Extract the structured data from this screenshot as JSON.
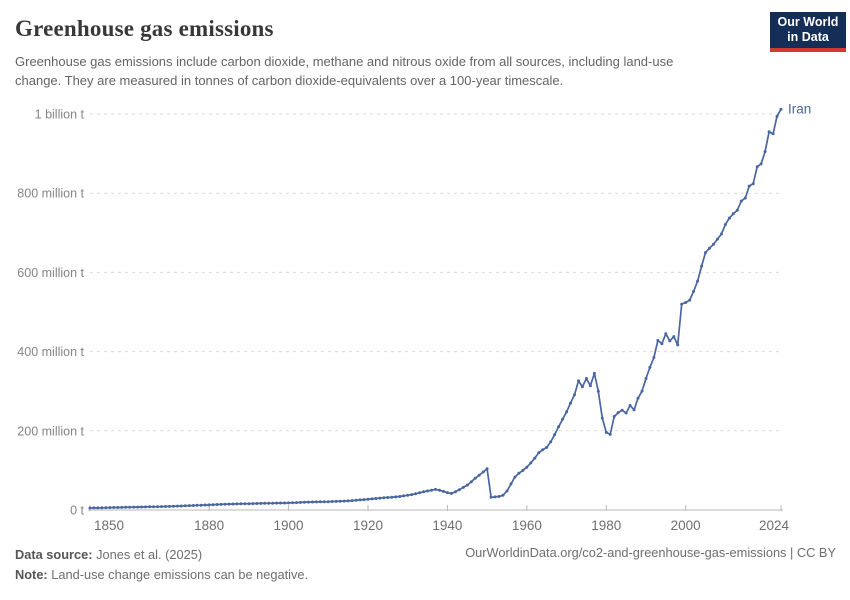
{
  "header": {
    "title": "Greenhouse gas emissions",
    "subtitle": "Greenhouse gas emissions include carbon dioxide, methane and nitrous oxide from all sources, including land-use change. They are measured in tonnes of carbon dioxide-equivalents over a 100-year timescale.",
    "logo": {
      "line1": "Our World",
      "line2": "in Data"
    }
  },
  "chart_data": {
    "type": "line",
    "title": "Greenhouse gas emissions",
    "unit": "tonnes of carbon dioxide-equivalents",
    "values_in": "million tonnes",
    "xlim": [
      1850,
      2024
    ],
    "ylim": [
      0,
      1000
    ],
    "grid": "dashed-horizontal",
    "legend": "end-of-line-label",
    "color": "#4a66a0",
    "x_ticks": [
      {
        "label": "1850",
        "year": 1850
      },
      {
        "label": "1880",
        "year": 1880
      },
      {
        "label": "1900",
        "year": 1900
      },
      {
        "label": "1920",
        "year": 1920
      },
      {
        "label": "1940",
        "year": 1940
      },
      {
        "label": "1960",
        "year": 1960
      },
      {
        "label": "1980",
        "year": 1980
      },
      {
        "label": "2000",
        "year": 2000
      },
      {
        "label": "2024",
        "year": 2024
      }
    ],
    "y_ticks": [
      {
        "label": "0 t",
        "value": 0
      },
      {
        "label": "200 million t",
        "value": 200
      },
      {
        "label": "400 million t",
        "value": 400
      },
      {
        "label": "600 million t",
        "value": 600
      },
      {
        "label": "800 million t",
        "value": 800
      },
      {
        "label": "1 billion t",
        "value": 1000
      }
    ],
    "series": [
      {
        "name": "Iran",
        "points": [
          [
            1850,
            5
          ],
          [
            1855,
            6
          ],
          [
            1860,
            7
          ],
          [
            1865,
            8
          ],
          [
            1870,
            9
          ],
          [
            1875,
            11
          ],
          [
            1880,
            13
          ],
          [
            1885,
            15
          ],
          [
            1890,
            16
          ],
          [
            1895,
            17
          ],
          [
            1900,
            18
          ],
          [
            1905,
            20
          ],
          [
            1910,
            21
          ],
          [
            1915,
            23
          ],
          [
            1920,
            27
          ],
          [
            1922,
            29
          ],
          [
            1924,
            31
          ],
          [
            1926,
            32
          ],
          [
            1928,
            34
          ],
          [
            1930,
            37
          ],
          [
            1932,
            41
          ],
          [
            1934,
            46
          ],
          [
            1936,
            50
          ],
          [
            1937,
            52
          ],
          [
            1938,
            50
          ],
          [
            1939,
            47
          ],
          [
            1940,
            44
          ],
          [
            1941,
            42
          ],
          [
            1942,
            46
          ],
          [
            1943,
            51
          ],
          [
            1944,
            57
          ],
          [
            1945,
            63
          ],
          [
            1946,
            71
          ],
          [
            1947,
            80
          ],
          [
            1948,
            88
          ],
          [
            1949,
            96
          ],
          [
            1950,
            104
          ],
          [
            1951,
            32
          ],
          [
            1952,
            33
          ],
          [
            1953,
            34
          ],
          [
            1954,
            37
          ],
          [
            1955,
            48
          ],
          [
            1956,
            66
          ],
          [
            1957,
            83
          ],
          [
            1958,
            93
          ],
          [
            1959,
            100
          ],
          [
            1960,
            108
          ],
          [
            1961,
            119
          ],
          [
            1962,
            131
          ],
          [
            1963,
            145
          ],
          [
            1964,
            152
          ],
          [
            1965,
            158
          ],
          [
            1966,
            172
          ],
          [
            1967,
            190
          ],
          [
            1968,
            210
          ],
          [
            1969,
            229
          ],
          [
            1970,
            248
          ],
          [
            1971,
            270
          ],
          [
            1972,
            291
          ],
          [
            1973,
            326
          ],
          [
            1974,
            311
          ],
          [
            1975,
            332
          ],
          [
            1976,
            314
          ],
          [
            1977,
            345
          ],
          [
            1978,
            300
          ],
          [
            1979,
            232
          ],
          [
            1980,
            196
          ],
          [
            1981,
            191
          ],
          [
            1982,
            236
          ],
          [
            1983,
            246
          ],
          [
            1984,
            252
          ],
          [
            1985,
            245
          ],
          [
            1986,
            264
          ],
          [
            1987,
            253
          ],
          [
            1988,
            282
          ],
          [
            1989,
            300
          ],
          [
            1990,
            332
          ],
          [
            1991,
            360
          ],
          [
            1992,
            385
          ],
          [
            1993,
            428
          ],
          [
            1994,
            420
          ],
          [
            1995,
            445
          ],
          [
            1996,
            427
          ],
          [
            1997,
            438
          ],
          [
            1998,
            417
          ],
          [
            1999,
            520
          ],
          [
            2000,
            524
          ],
          [
            2001,
            530
          ],
          [
            2002,
            552
          ],
          [
            2003,
            578
          ],
          [
            2004,
            616
          ],
          [
            2005,
            650
          ],
          [
            2006,
            661
          ],
          [
            2007,
            671
          ],
          [
            2008,
            684
          ],
          [
            2009,
            697
          ],
          [
            2010,
            721
          ],
          [
            2011,
            737
          ],
          [
            2012,
            748
          ],
          [
            2013,
            757
          ],
          [
            2014,
            780
          ],
          [
            2015,
            788
          ],
          [
            2016,
            818
          ],
          [
            2017,
            824
          ],
          [
            2018,
            867
          ],
          [
            2019,
            874
          ],
          [
            2020,
            905
          ],
          [
            2021,
            955
          ],
          [
            2022,
            950
          ],
          [
            2023,
            994
          ],
          [
            2024,
            1012
          ]
        ]
      }
    ]
  },
  "footer": {
    "data_source_label": "Data source:",
    "data_source_value": "Jones et al. (2025)",
    "note_label": "Note:",
    "note_value": "Land-use change emissions can be negative.",
    "attribution": "OurWorldinData.org/co2-and-greenhouse-gas-emissions | CC BY"
  }
}
